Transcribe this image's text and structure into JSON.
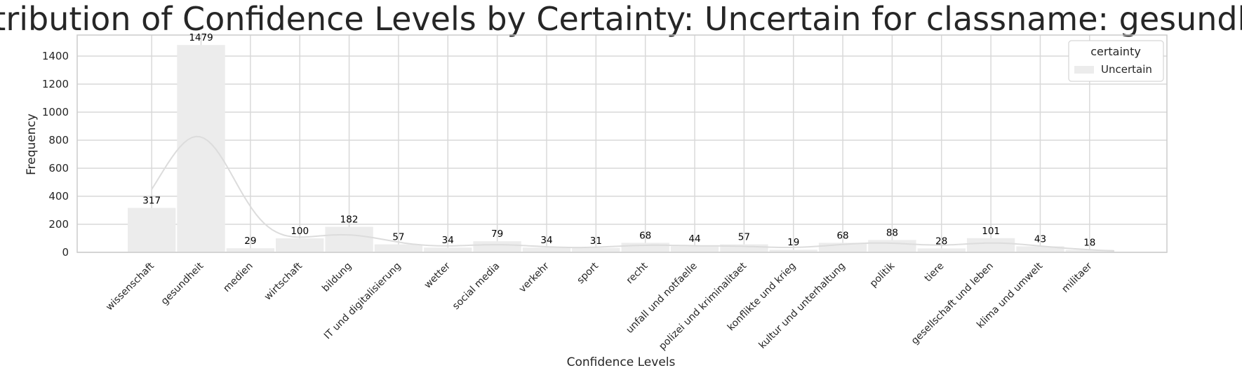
{
  "chart_data": {
    "type": "bar",
    "title": "Distribution of Confidence Levels by Certainty: Uncertain for classname: gesundheit",
    "xlabel": "Confidence Levels",
    "ylabel": "Frequency",
    "categories": [
      "wissenschaft",
      "gesundheit",
      "medien",
      "wirtschaft",
      "bildung",
      "IT und digitalisierung",
      "wetter",
      "social media",
      "verkehr",
      "sport",
      "recht",
      "unfall und notfaelle",
      "polizei und kriminalitaet",
      "konflikte und krieg",
      "kultur und unterhaltung",
      "politik",
      "tiere",
      "gesellschaft und leben",
      "klima und umwelt",
      "militaer"
    ],
    "series": [
      {
        "name": "Uncertain",
        "values": [
          317,
          1479,
          29,
          100,
          182,
          57,
          34,
          79,
          34,
          31,
          68,
          44,
          57,
          19,
          68,
          88,
          28,
          101,
          43,
          18
        ]
      }
    ],
    "ylim": [
      0,
      1550
    ],
    "yticks": [
      0,
      200,
      400,
      600,
      800,
      1000,
      1200,
      1400
    ],
    "grid": true,
    "kde_curve": true,
    "legend": {
      "title": "certainty",
      "placement": "top-right",
      "entries": [
        "Uncertain"
      ]
    },
    "colors": {
      "bar": "#ececec",
      "kde": "#dcdcdc",
      "grid": "#d9d9d9",
      "frame": "#cccccc"
    }
  }
}
